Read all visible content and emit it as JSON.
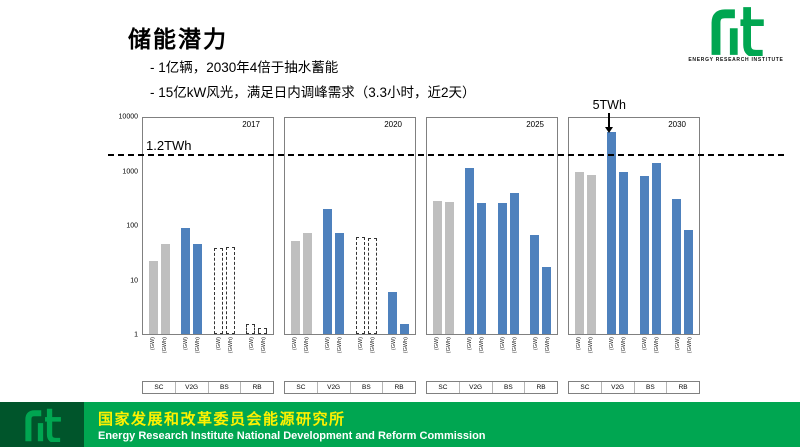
{
  "slide": {
    "title": "储能潜力",
    "bullets": [
      "- 1亿辆，2030年4倍于抽水蓄能",
      "- 15亿kW风光，满足日内调峰需求（3.3小时，近2天）"
    ]
  },
  "logo": {
    "caption": "ENERGY RESEARCH INSTITUTE",
    "green": "#00A651",
    "dark_green": "#00552B"
  },
  "footer": {
    "org_cn": "国家发展和改革委员会能源研究所",
    "org_en": "Energy Research Institute National Development and Reform Commission",
    "band_color": "#00A651",
    "cn_color": "#FFF100",
    "en_color": "#FFFFFF"
  },
  "chart_data": {
    "type": "bar",
    "yscale": "log",
    "ylim": [
      1,
      10000
    ],
    "yticks": [
      "10000",
      "1000",
      "100",
      "10",
      "1"
    ],
    "grid": false,
    "legend": "none",
    "groups": [
      "SC",
      "V2G",
      "BS",
      "RB"
    ],
    "bar_colors": {
      "gray": "#BFBFBF",
      "blue": "#4E81BD"
    },
    "reference_line": {
      "label": "1.2TWh",
      "y_value": 2000
    },
    "annotation": {
      "label": "5TWh",
      "panel_index": 3,
      "bar_index": 2
    },
    "panels": [
      {
        "year": "2017",
        "bars": [
          {
            "label": "(GW)",
            "value": 22,
            "style": "gray"
          },
          {
            "label": "(GWh)",
            "value": 45,
            "style": "gray"
          },
          {
            "label": "(GW)",
            "value": 90,
            "style": "blue"
          },
          {
            "label": "(GWh)",
            "value": 45,
            "style": "blue"
          },
          {
            "label": "(GW)",
            "value": 38,
            "style": "dashed"
          },
          {
            "label": "(GWh)",
            "value": 40,
            "style": "dashed"
          },
          {
            "label": "(GW)",
            "value": 1.5,
            "style": "dashed"
          },
          {
            "label": "(GWh)",
            "value": 1.3,
            "style": "dashed"
          }
        ]
      },
      {
        "year": "2020",
        "bars": [
          {
            "label": "(GW)",
            "value": 50,
            "style": "gray"
          },
          {
            "label": "(GWh)",
            "value": 70,
            "style": "gray"
          },
          {
            "label": "(GW)",
            "value": 200,
            "style": "blue"
          },
          {
            "label": "(GWh)",
            "value": 70,
            "style": "blue"
          },
          {
            "label": "(GW)",
            "value": 60,
            "style": "dashed"
          },
          {
            "label": "(GWh)",
            "value": 58,
            "style": "dashed"
          },
          {
            "label": "(GW)",
            "value": 6,
            "style": "blue"
          },
          {
            "label": "(GWh)",
            "value": 1.5,
            "style": "blue"
          }
        ]
      },
      {
        "year": "2025",
        "bars": [
          {
            "label": "(GW)",
            "value": 280,
            "style": "gray"
          },
          {
            "label": "(GWh)",
            "value": 270,
            "style": "gray"
          },
          {
            "label": "(GW)",
            "value": 1100,
            "style": "blue"
          },
          {
            "label": "(GWh)",
            "value": 250,
            "style": "blue"
          },
          {
            "label": "(GW)",
            "value": 250,
            "style": "blue"
          },
          {
            "label": "(GWh)",
            "value": 380,
            "style": "blue"
          },
          {
            "label": "(GW)",
            "value": 65,
            "style": "blue"
          },
          {
            "label": "(GWh)",
            "value": 17,
            "style": "blue"
          }
        ]
      },
      {
        "year": "2030",
        "bars": [
          {
            "label": "(GW)",
            "value": 950,
            "style": "gray"
          },
          {
            "label": "(GWh)",
            "value": 820,
            "style": "gray"
          },
          {
            "label": "(GW)",
            "value": 5000,
            "style": "blue"
          },
          {
            "label": "(GWh)",
            "value": 950,
            "style": "blue"
          },
          {
            "label": "(GW)",
            "value": 800,
            "style": "blue"
          },
          {
            "label": "(GWh)",
            "value": 1400,
            "style": "blue"
          },
          {
            "label": "(GW)",
            "value": 300,
            "style": "blue"
          },
          {
            "label": "(GWh)",
            "value": 80,
            "style": "blue"
          }
        ]
      }
    ]
  }
}
